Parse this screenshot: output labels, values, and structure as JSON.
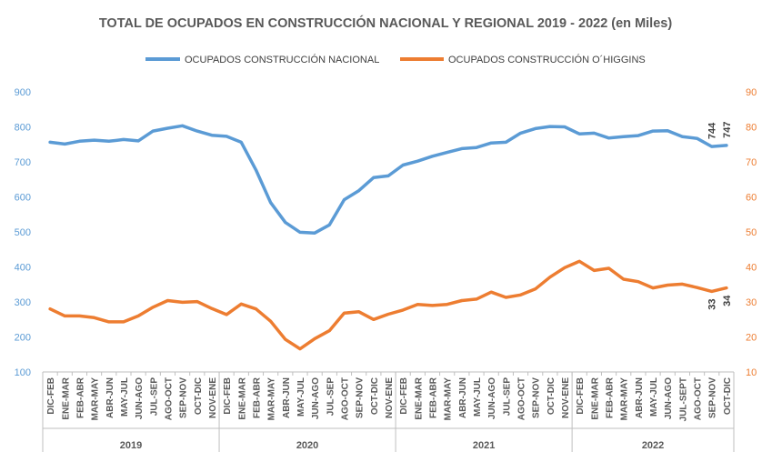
{
  "chart_data": {
    "type": "line",
    "title": "TOTAL DE OCUPADOS EN CONSTRUCCIÓN NACIONAL Y REGIONAL 2019 - 2022 (en Miles)",
    "categories": [
      "DIC-FEB",
      "ENE-MAR",
      "FEB-ABR",
      "MAR-MAY",
      "ABR-JUN",
      "MAY-JUL",
      "JUN-AGO",
      "JUL-SEP",
      "AGO-OCT",
      "SEP-NOV",
      "OCT-DIC",
      "NOV-ENE",
      "DIC-FEB",
      "ENE-MAR",
      "FEB-ABR",
      "MAR-MAY",
      "ABR-JUN",
      "MAY-JUL",
      "JUN-AGO",
      "JUL-SEP",
      "AGO-OCT",
      "SEP-NOV",
      "OCT-DIC",
      "NOV-ENE",
      "DIC-FEB",
      "ENE-MAR",
      "FEB-ABR",
      "MAR-MAY",
      "ABR-JUN",
      "MAY-JUL",
      "JUN-AGO",
      "JUL-SEP",
      "AGO-OCT",
      "SEP-NOV",
      "OCT-DIC",
      "NOV-ENE",
      "DIC-FEB",
      "ENE-MAR",
      "FEB-ABR",
      "MAR-MAY",
      "ABR-JUN",
      "MAY-JUL",
      "JUN-AGO",
      "JUL-SEPT",
      "AGO-OCT",
      "SEP-NOV",
      "OCT-DIC"
    ],
    "groups": [
      {
        "label": "2019",
        "count": 12
      },
      {
        "label": "2020",
        "count": 12
      },
      {
        "label": "2021",
        "count": 12
      },
      {
        "label": "2022",
        "count": 11
      }
    ],
    "series": [
      {
        "name": "OCUPADOS CONSTRUCCIÓN NACIONAL",
        "axis": "left",
        "color": "#5B9BD5",
        "values": [
          756,
          751,
          759,
          762,
          759,
          764,
          760,
          788,
          796,
          803,
          788,
          776,
          773,
          756,
          677,
          584,
          527,
          499,
          497,
          520,
          592,
          618,
          655,
          660,
          691,
          702,
          716,
          727,
          738,
          741,
          754,
          756,
          782,
          795,
          801,
          800,
          780,
          782,
          768,
          772,
          775,
          788,
          789,
          772,
          767,
          744,
          747
        ]
      },
      {
        "name": "OCUPADOS CONSTRUCCIÓN O´HIGGINS",
        "axis": "right",
        "color": "#ED7D31",
        "values": [
          28,
          26,
          26,
          25.5,
          24.3,
          24.3,
          26,
          28.5,
          30.4,
          29.9,
          30.1,
          28.1,
          26.4,
          29.4,
          28,
          24.5,
          19.3,
          16.6,
          19.5,
          21.8,
          26.8,
          27.2,
          25,
          26.5,
          27.7,
          29.3,
          29,
          29.3,
          30.4,
          30.8,
          32.8,
          31.3,
          32,
          33.7,
          37.1,
          39.8,
          41.6,
          39,
          39.6,
          36.5,
          35.8,
          34,
          34.8,
          35.1,
          34.1,
          33,
          34
        ]
      }
    ],
    "point_labels": {
      "left": [
        {
          "index": 45,
          "text": "744"
        },
        {
          "index": 46,
          "text": "747"
        }
      ],
      "right": [
        {
          "index": 45,
          "text": "33"
        },
        {
          "index": 46,
          "text": "34"
        }
      ]
    },
    "yaxis_left": {
      "min": 100,
      "max": 900,
      "step": 100,
      "ticks": [
        "100",
        "200",
        "300",
        "400",
        "500",
        "600",
        "700",
        "800",
        "900"
      ]
    },
    "yaxis_right": {
      "min": 10,
      "max": 90,
      "step": 10,
      "ticks": [
        "10",
        "20",
        "30",
        "40",
        "50",
        "60",
        "70",
        "80",
        "90"
      ]
    },
    "xlabel": "",
    "ylabel": "",
    "legend": "top-center",
    "grid": false
  },
  "colors": {
    "title": "#595959",
    "axis_tick": "#595959",
    "left_tick": "#5B9BD5",
    "right_tick": "#ED7D31",
    "label": "#404040",
    "axis_line": "#BFBFBF"
  }
}
